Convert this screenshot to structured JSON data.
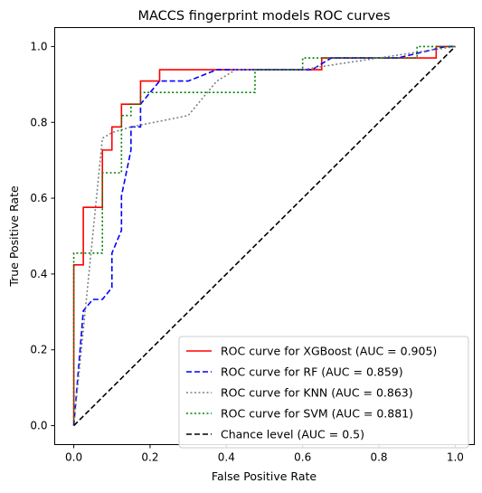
{
  "chart_data": {
    "type": "line",
    "title": "MACCS fingerprint models ROC curves",
    "xlabel": "False Positive Rate",
    "ylabel": "True Positive Rate",
    "xlim": [
      -0.05,
      1.05
    ],
    "ylim": [
      -0.05,
      1.05
    ],
    "xticks": [
      0.0,
      0.2,
      0.4,
      0.6,
      0.8,
      1.0
    ],
    "yticks": [
      0.0,
      0.2,
      0.4,
      0.6,
      0.8,
      1.0
    ],
    "xtick_labels": [
      "0.0",
      "0.2",
      "0.4",
      "0.6",
      "0.8",
      "1.0"
    ],
    "ytick_labels": [
      "0.0",
      "0.2",
      "0.4",
      "0.6",
      "0.8",
      "1.0"
    ],
    "grid": false,
    "legend_position": "bottom-right",
    "series": [
      {
        "name": "ROC curve for XGBoost (AUC = 0.905)",
        "color": "#ff0000",
        "dash": "solid",
        "step": true,
        "x": [
          0.0,
          0.0,
          0.025,
          0.025,
          0.075,
          0.075,
          0.1,
          0.1,
          0.125,
          0.125,
          0.175,
          0.175,
          0.225,
          0.225,
          0.65,
          0.65,
          0.95,
          0.95,
          1.0
        ],
        "y": [
          0.0,
          0.424,
          0.424,
          0.576,
          0.576,
          0.727,
          0.727,
          0.788,
          0.788,
          0.848,
          0.848,
          0.909,
          0.909,
          0.939,
          0.939,
          0.97,
          0.97,
          1.0,
          1.0
        ]
      },
      {
        "name": "ROC curve for RF (AUC = 0.859)",
        "color": "#0000ff",
        "dash": "dashed",
        "step": false,
        "x": [
          0.0,
          0.025,
          0.05,
          0.075,
          0.1,
          0.1,
          0.125,
          0.125,
          0.15,
          0.15,
          0.175,
          0.175,
          0.225,
          0.3,
          0.375,
          0.425,
          0.625,
          0.675,
          0.85,
          0.975,
          1.0
        ],
        "y": [
          0.0,
          0.303,
          0.333,
          0.333,
          0.364,
          0.455,
          0.515,
          0.606,
          0.727,
          0.788,
          0.788,
          0.848,
          0.909,
          0.909,
          0.939,
          0.939,
          0.939,
          0.97,
          0.97,
          1.0,
          1.0
        ]
      },
      {
        "name": "ROC curve for KNN (AUC = 0.863)",
        "color": "#808080",
        "dash": "dotted",
        "step": false,
        "x": [
          0.0,
          0.075,
          0.1,
          0.15,
          0.225,
          0.3,
          0.35,
          0.375,
          0.425,
          0.45,
          0.6,
          0.7,
          0.8,
          0.9,
          1.0
        ],
        "y": [
          0.0,
          0.758,
          0.773,
          0.788,
          0.803,
          0.818,
          0.879,
          0.909,
          0.939,
          0.939,
          0.939,
          0.955,
          0.97,
          0.985,
          1.0
        ]
      },
      {
        "name": "ROC curve for SVM (AUC = 0.881)",
        "color": "#008000",
        "dash": "dotted",
        "step": true,
        "x": [
          0.0,
          0.0,
          0.075,
          0.075,
          0.125,
          0.125,
          0.15,
          0.15,
          0.175,
          0.175,
          0.475,
          0.475,
          0.6,
          0.6,
          0.9,
          0.9,
          1.0
        ],
        "y": [
          0.0,
          0.455,
          0.455,
          0.667,
          0.667,
          0.818,
          0.818,
          0.848,
          0.848,
          0.879,
          0.879,
          0.939,
          0.939,
          0.97,
          0.97,
          1.0,
          1.0
        ]
      },
      {
        "name": "Chance level (AUC = 0.5)",
        "color": "#000000",
        "dash": "dashed",
        "step": false,
        "x": [
          0.0,
          1.0
        ],
        "y": [
          0.0,
          1.0
        ]
      }
    ]
  }
}
